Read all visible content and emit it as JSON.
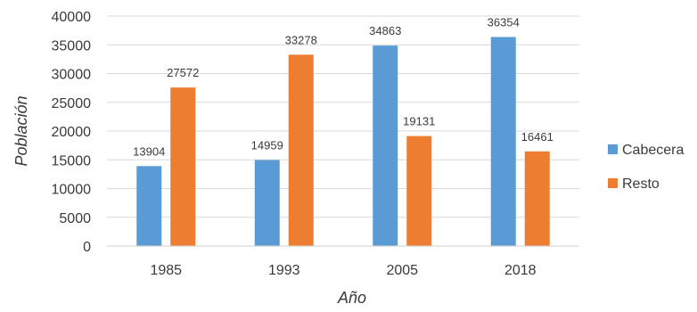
{
  "chart_data": {
    "type": "bar",
    "categories": [
      "1985",
      "1993",
      "2005",
      "2018"
    ],
    "series": [
      {
        "name": "Cabecera",
        "values": [
          13904,
          14959,
          34863,
          36354
        ],
        "color": "#5b9bd5"
      },
      {
        "name": "Resto",
        "values": [
          27572,
          33278,
          19131,
          16461
        ],
        "color": "#ed7d31"
      }
    ],
    "xlabel": "Año",
    "ylabel": "Población",
    "ylim": [
      0,
      40000
    ],
    "yticks": [
      0,
      5000,
      10000,
      15000,
      20000,
      25000,
      30000,
      35000,
      40000
    ],
    "grid": true,
    "legend": "right"
  }
}
